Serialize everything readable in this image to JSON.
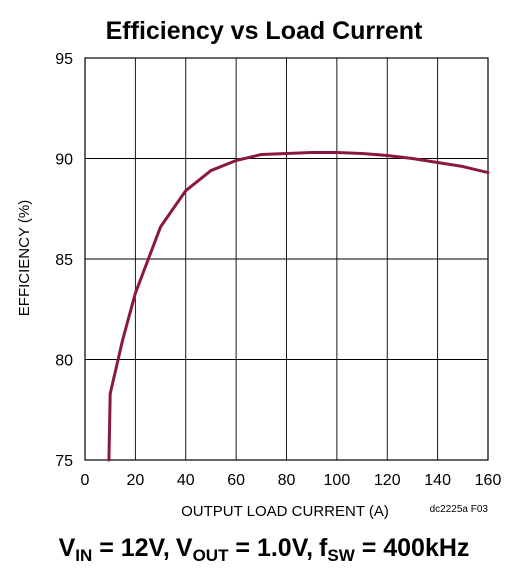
{
  "chart_data": {
    "type": "line",
    "title": "Efficiency vs Load Current",
    "xlabel": "OUTPUT LOAD CURRENT (A)",
    "ylabel": "EFFICIENCY (%)",
    "xlim": [
      0,
      160
    ],
    "ylim": [
      75,
      95
    ],
    "xticks": [
      0,
      20,
      40,
      60,
      80,
      100,
      120,
      140,
      160
    ],
    "yticks": [
      75,
      80,
      85,
      90,
      95
    ],
    "grid": true,
    "series": [
      {
        "color": "#8b1a3a",
        "x": [
          9.5,
          10,
          15,
          20,
          30,
          40,
          50,
          60,
          70,
          80,
          90,
          100,
          110,
          120,
          130,
          140,
          150,
          160
        ],
        "y": [
          75,
          78.3,
          81,
          83.3,
          86.6,
          88.4,
          89.4,
          89.9,
          90.2,
          90.25,
          90.3,
          90.3,
          90.25,
          90.15,
          90.0,
          89.8,
          89.6,
          89.3
        ]
      }
    ],
    "figure_code": "dc2225a F03",
    "conditions": {
      "vin_symbol": "V",
      "vin_sub": "IN",
      "vin_value": " = 12V,",
      "vout_symbol": "V",
      "vout_sub": "OUT",
      "vout_value": " = 1.0V,",
      "fsw_symbol": "f",
      "fsw_sub": "SW",
      "fsw_value": " = 400kHz"
    }
  }
}
